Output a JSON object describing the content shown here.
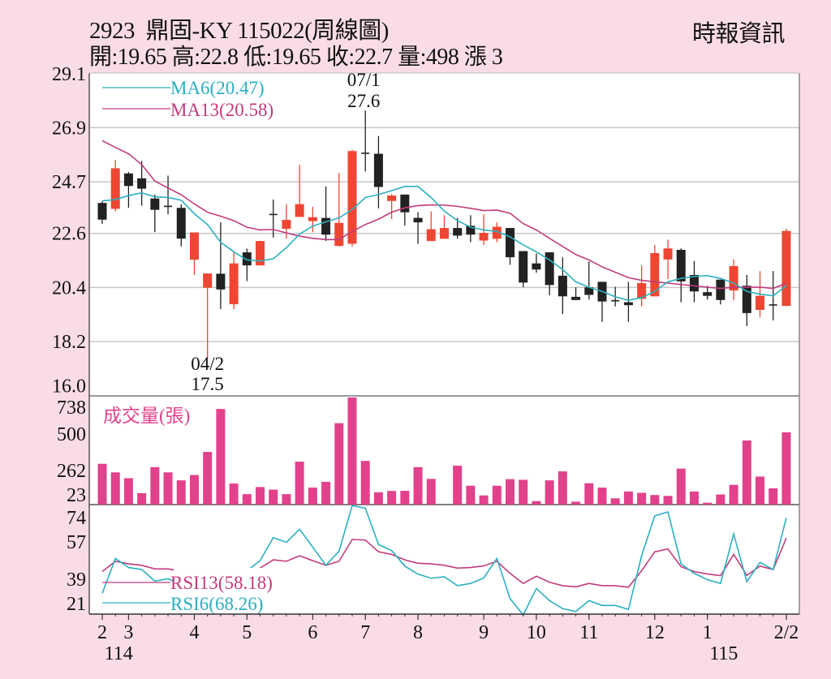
{
  "header": {
    "title": "2923  鼎固-KY 115022(周線圖)",
    "ohlc": "開:19.65 高:22.8 低:19.65 收:22.7 量:498 漲 3",
    "source": "時報資訊"
  },
  "colors": {
    "background": "#fadce7",
    "up": "#ee4632",
    "down": "#222222",
    "ma6": "#2bb0c0",
    "ma13": "#c23b7c",
    "volume": "#e2418b",
    "grid": "#c8c8c8"
  },
  "chart_data": {
    "type": "candlestick",
    "price_axis": {
      "ticks": [
        29.1,
        26.9,
        24.7,
        22.6,
        20.4,
        18.2,
        16.0
      ],
      "range": [
        16.0,
        29.1
      ]
    },
    "volume_axis": {
      "ticks": [
        738,
        500,
        262,
        23
      ],
      "label": "成交量(張)",
      "range": [
        0,
        738
      ]
    },
    "rsi_axis": {
      "ticks": [
        74,
        57,
        39,
        21
      ],
      "range": [
        20.5,
        74.8
      ]
    },
    "legend": {
      "ma6": "MA6(20.47)",
      "ma13": "MA13(20.58)",
      "rsi13": "RSI13(58.18)",
      "rsi6": "RSI6(68.26)"
    },
    "x_ticks": [
      {
        "label": "2",
        "index": 0
      },
      {
        "label": "3",
        "index": 2
      },
      {
        "label": "4",
        "index": 7
      },
      {
        "label": "5",
        "index": 11
      },
      {
        "label": "6",
        "index": 16
      },
      {
        "label": "7",
        "index": 20
      },
      {
        "label": "8",
        "index": 24
      },
      {
        "label": "9",
        "index": 29
      },
      {
        "label": "10",
        "index": 33
      },
      {
        "label": "11",
        "index": 37
      },
      {
        "label": "12",
        "index": 42
      },
      {
        "label": "1",
        "index": 46
      },
      {
        "label": "2/2",
        "index": 52
      }
    ],
    "year_labels": [
      {
        "label": "114",
        "index": 1
      },
      {
        "label": "115",
        "index": 47
      }
    ],
    "annotations": [
      {
        "date": "07/1",
        "value": "27.6",
        "index": 20,
        "position": "above"
      },
      {
        "date": "04/2",
        "value": "17.5",
        "index": 8,
        "position": "below"
      }
    ],
    "open": [
      23.84,
      23.6,
      25.04,
      24.84,
      24.02,
      23.7,
      23.64,
      21.53,
      20.39,
      20.96,
      19.72,
      21.83,
      21.3,
      23.37,
      22.79,
      23.27,
      23.1,
      23.23,
      22.09,
      22.18,
      25.86,
      25.84,
      23.92,
      24.18,
      23.23,
      22.29,
      22.38,
      22.82,
      22.91,
      22.31,
      22.38,
      22.82,
      21.88,
      21.38,
      21.83,
      20.88,
      20.02,
      20.41,
      20.63,
      19.86,
      19.8,
      19.94,
      20.04,
      21.54,
      21.93,
      20.91,
      20.21,
      20.72,
      20.28,
      20.47,
      19.49,
      19.69,
      19.65
    ],
    "high": [
      23.9,
      25.59,
      25.1,
      25.55,
      24.18,
      24.95,
      23.79,
      22.64,
      20.97,
      23.05,
      21.85,
      21.98,
      22.3,
      23.98,
      23.79,
      25.39,
      23.68,
      24.51,
      25.06,
      26.0,
      27.6,
      26.56,
      24.2,
      24.18,
      23.46,
      23.49,
      23.34,
      23.23,
      23.34,
      23.38,
      23.05,
      22.82,
      21.88,
      21.78,
      21.83,
      21.63,
      20.41,
      21.46,
      20.63,
      20.43,
      20.63,
      21.3,
      22.13,
      22.35,
      21.99,
      21.48,
      20.47,
      20.72,
      21.54,
      20.91,
      21.07,
      21.07,
      22.8
    ],
    "low": [
      22.99,
      23.49,
      23.64,
      23.73,
      22.65,
      23.38,
      22.07,
      20.91,
      17.5,
      19.52,
      19.52,
      20.66,
      21.3,
      22.43,
      22.38,
      23.27,
      22.65,
      22.29,
      22.07,
      22.07,
      25.12,
      23.62,
      23.18,
      22.92,
      22.18,
      22.29,
      22.38,
      22.38,
      22.24,
      22.13,
      22.24,
      21.32,
      20.41,
      21.0,
      20.08,
      19.32,
      19.89,
      19.91,
      19.0,
      19.63,
      19.0,
      19.63,
      20.04,
      20.74,
      19.8,
      19.8,
      19.91,
      19.71,
      19.88,
      18.83,
      19.19,
      19.06,
      19.65
    ],
    "close": [
      23.16,
      25.25,
      24.53,
      24.42,
      23.56,
      23.68,
      22.39,
      22.64,
      20.97,
      20.32,
      21.38,
      21.3,
      22.29,
      23.37,
      23.15,
      23.79,
      23.26,
      22.55,
      23.03,
      25.95,
      25.86,
      24.49,
      24.14,
      23.46,
      23.05,
      22.77,
      22.82,
      22.51,
      22.55,
      22.62,
      22.87,
      21.63,
      20.6,
      21.13,
      20.5,
      20.04,
      19.89,
      20.1,
      19.83,
      19.86,
      19.68,
      20.58,
      21.8,
      21.99,
      20.65,
      20.24,
      20.06,
      19.89,
      21.27,
      19.36,
      20.06,
      19.69,
      22.7
    ],
    "ma6": [
      23.92,
      23.98,
      24.14,
      24.25,
      24.09,
      24.06,
      23.95,
      23.4,
      22.96,
      22.24,
      21.85,
      21.52,
      21.48,
      21.57,
      22.02,
      22.57,
      22.9,
      23.07,
      23.23,
      23.57,
      24.06,
      24.18,
      24.34,
      24.51,
      24.51,
      24.06,
      23.51,
      23.12,
      22.85,
      22.74,
      22.68,
      22.46,
      22.13,
      21.85,
      21.52,
      21.13,
      20.63,
      20.41,
      20.24,
      20.02,
      19.88,
      19.99,
      20.24,
      20.63,
      20.77,
      20.85,
      20.88,
      20.77,
      20.58,
      20.24,
      20.13,
      20.06,
      20.47
    ],
    "ma13": [
      26.37,
      26.1,
      25.84,
      25.4,
      24.73,
      24.45,
      24.17,
      23.8,
      23.46,
      23.3,
      23.12,
      22.85,
      22.74,
      22.76,
      22.62,
      22.49,
      22.4,
      22.35,
      22.35,
      22.68,
      22.96,
      23.18,
      23.46,
      23.64,
      23.73,
      23.76,
      23.75,
      23.7,
      23.62,
      23.53,
      23.55,
      23.42,
      23.0,
      22.74,
      22.4,
      22.07,
      21.74,
      21.52,
      21.24,
      21.02,
      20.8,
      20.69,
      20.63,
      20.58,
      20.52,
      20.47,
      20.41,
      20.36,
      20.41,
      20.41,
      20.41,
      20.36,
      20.58
    ],
    "volume": [
      281,
      222,
      182,
      79,
      258,
      222,
      167,
      204,
      363,
      659,
      145,
      72,
      121,
      103,
      72,
      296,
      117,
      157,
      561,
      738,
      301,
      85,
      94,
      95,
      258,
      177,
      0,
      268,
      130,
      63,
      130,
      175,
      171,
      24,
      167,
      229,
      20,
      147,
      117,
      43,
      90,
      81,
      66,
      60,
      248,
      90,
      13,
      70,
      136,
      442,
      193,
      112,
      498
    ],
    "rsi13": [
      41.6,
      46.7,
      45.4,
      44.7,
      42.9,
      42.9,
      41.9,
      40.5,
      38.5,
      38.0,
      40.0,
      41.5,
      43.3,
      47.4,
      46.7,
      49.4,
      47.0,
      44.7,
      46.7,
      57.5,
      57.2,
      51.4,
      50.1,
      47.4,
      45.7,
      45.4,
      44.7,
      43.3,
      43.6,
      44.4,
      46.7,
      40.7,
      35.7,
      39.3,
      36.3,
      34.6,
      34.0,
      35.7,
      34.6,
      34.6,
      33.8,
      42.0,
      51.4,
      52.8,
      44.0,
      41.6,
      40.4,
      39.6,
      50.1,
      39.7,
      44.3,
      42.6,
      58.18
    ],
    "rsi6": [
      30.8,
      48.1,
      43.6,
      42.6,
      36.9,
      38.0,
      35.0,
      40.0,
      33.0,
      32.0,
      38.0,
      42.0,
      47.0,
      58.4,
      56.1,
      62.6,
      53.7,
      44.7,
      51.7,
      74.3,
      73.0,
      55.0,
      52.0,
      44.3,
      40.3,
      38.3,
      39.0,
      34.6,
      35.7,
      38.4,
      48.1,
      28.2,
      20.1,
      33.2,
      27.2,
      23.2,
      21.8,
      27.2,
      24.8,
      24.8,
      22.8,
      49.4,
      69.2,
      71.2,
      45.4,
      40.7,
      37.6,
      35.7,
      60.2,
      36.6,
      46.1,
      42.6,
      68.26
    ]
  }
}
